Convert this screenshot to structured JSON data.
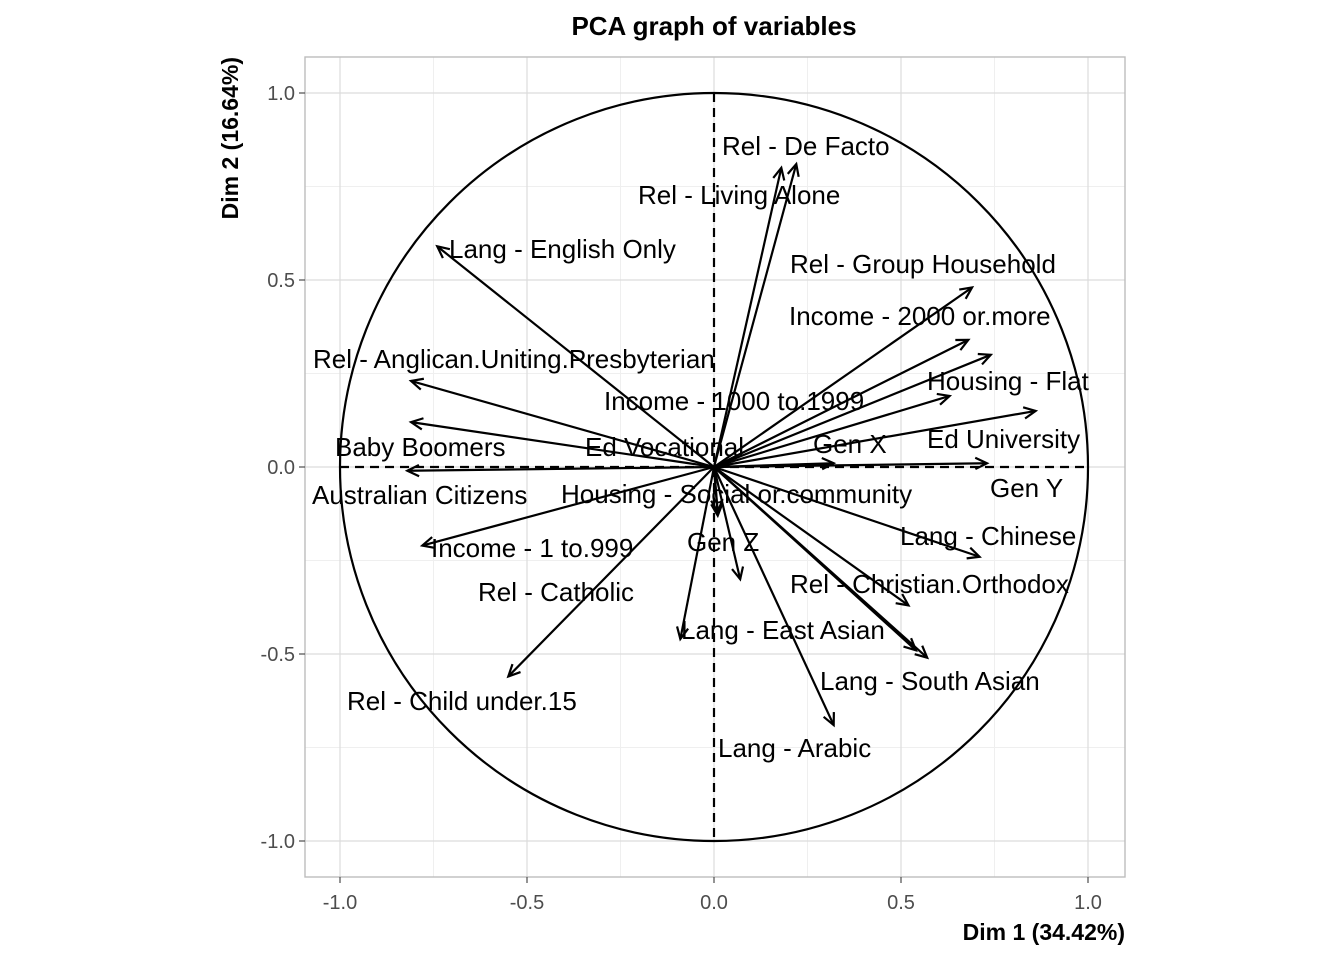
{
  "chart_data": {
    "type": "scatter",
    "title": "PCA graph of variables",
    "xlabel": "Dim 1 (34.42%)",
    "ylabel": "Dim 2 (16.64%)",
    "xlim": [
      -1.1,
      1.1
    ],
    "ylim": [
      -1.1,
      1.1
    ],
    "xticks": [
      -1.0,
      -0.5,
      0.0,
      0.5,
      1.0
    ],
    "yticks": [
      -1.0,
      -0.5,
      0.0,
      0.5,
      1.0
    ],
    "xtick_labels": [
      "-1.0",
      "-0.5",
      "0.0",
      "0.5",
      "1.0"
    ],
    "ytick_labels": [
      "-1.0",
      "-0.5",
      "0.0",
      "0.5",
      "1.0"
    ],
    "grid": true,
    "unit_circle": true,
    "variables": [
      {
        "name": "Rel - De Facto",
        "x": 0.22,
        "y": 0.81
      },
      {
        "name": "Rel - Living Alone",
        "x": 0.18,
        "y": 0.8
      },
      {
        "name": "Lang - English Only",
        "x": -0.74,
        "y": 0.59
      },
      {
        "name": "Rel - Group Household",
        "x": 0.69,
        "y": 0.48
      },
      {
        "name": "Income - 2000 or.more",
        "x": 0.68,
        "y": 0.34
      },
      {
        "name": "Rel - Anglican.Uniting.Presbyterian",
        "x": -0.81,
        "y": 0.23
      },
      {
        "name": "Housing - Flat",
        "x": 0.74,
        "y": 0.3
      },
      {
        "name": "Income - 1000 to.1999",
        "x": 0.63,
        "y": 0.19
      },
      {
        "name": "Ed University",
        "x": 0.86,
        "y": 0.15
      },
      {
        "name": "Ed Vocational",
        "x": -0.81,
        "y": 0.12
      },
      {
        "name": "Gen X",
        "x": 0.32,
        "y": 0.01
      },
      {
        "name": "Baby Boomers",
        "x": -0.82,
        "y": -0.01
      },
      {
        "name": "Gen Y",
        "x": 0.73,
        "y": 0.01
      },
      {
        "name": "Housing - Social or.community",
        "x": 0.01,
        "y": -0.13
      },
      {
        "name": "Australian Citizens",
        "x": -0.78,
        "y": -0.21
      },
      {
        "name": "Income - 1 to.999",
        "x": 0.01,
        "y": -0.12
      },
      {
        "name": "Lang - Chinese",
        "x": 0.71,
        "y": -0.24
      },
      {
        "name": "Gen Z",
        "x": 0.07,
        "y": -0.3
      },
      {
        "name": "Rel - Christian.Orthodox",
        "x": 0.52,
        "y": -0.37
      },
      {
        "name": "Rel - Catholic",
        "x": -0.09,
        "y": -0.46
      },
      {
        "name": "Lang - East Asian",
        "x": 0.54,
        "y": -0.49
      },
      {
        "name": "Rel - Child under.15",
        "x": -0.55,
        "y": -0.56
      },
      {
        "name": "Lang - South Asian",
        "x": 0.57,
        "y": -0.51
      },
      {
        "name": "Lang - Arabic",
        "x": 0.32,
        "y": -0.69
      }
    ]
  }
}
